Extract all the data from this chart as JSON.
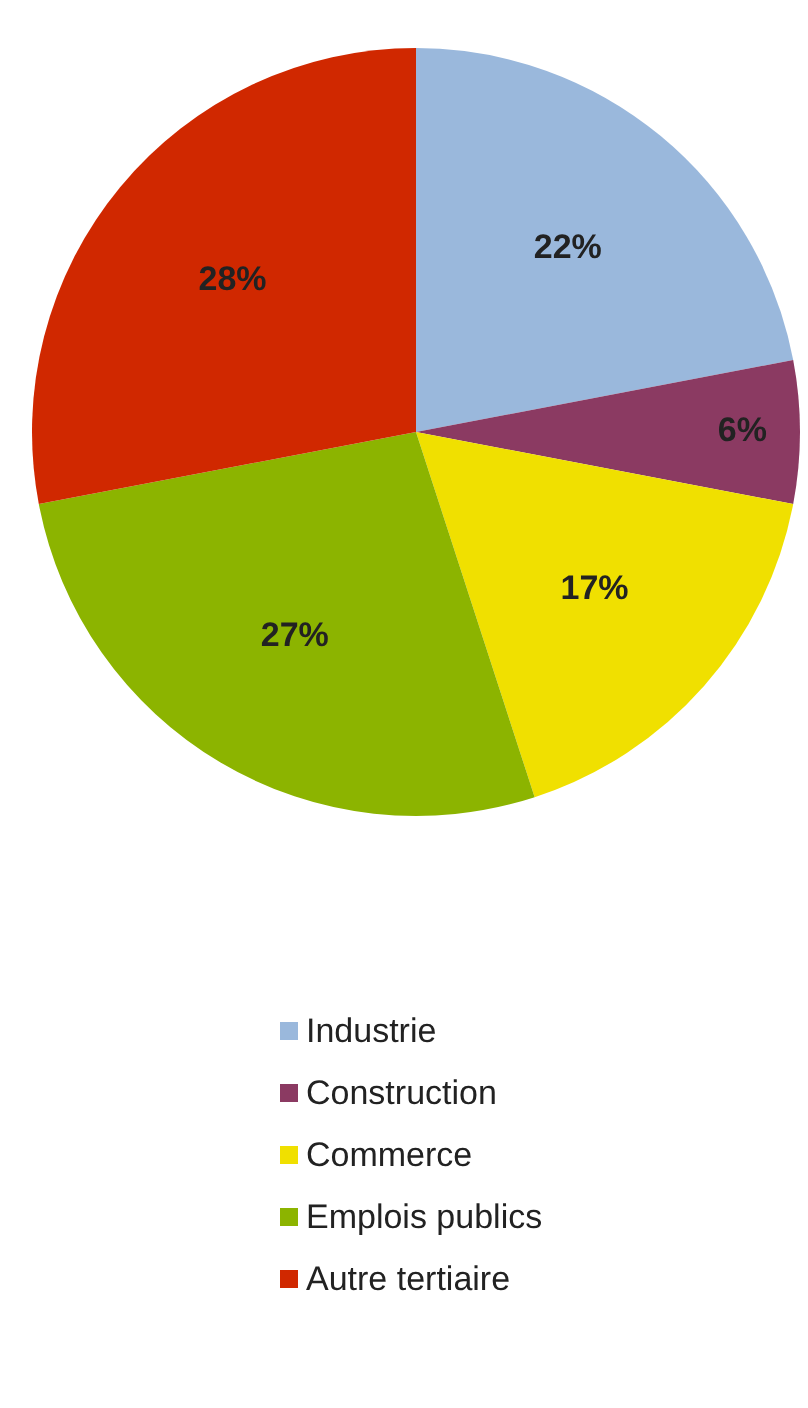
{
  "chart_data": {
    "type": "pie",
    "categories": [
      "Industrie",
      "Construction",
      "Commerce",
      "Emplois publics",
      "Autre tertiaire"
    ],
    "values": [
      22,
      6,
      17,
      27,
      28
    ],
    "colors": [
      "#9ab8dc",
      "#8b3a62",
      "#f0e000",
      "#8cb400",
      "#d02800"
    ],
    "value_labels": [
      "22%",
      "6%",
      "17%",
      "27%",
      "28%"
    ],
    "legend": "bottom"
  }
}
